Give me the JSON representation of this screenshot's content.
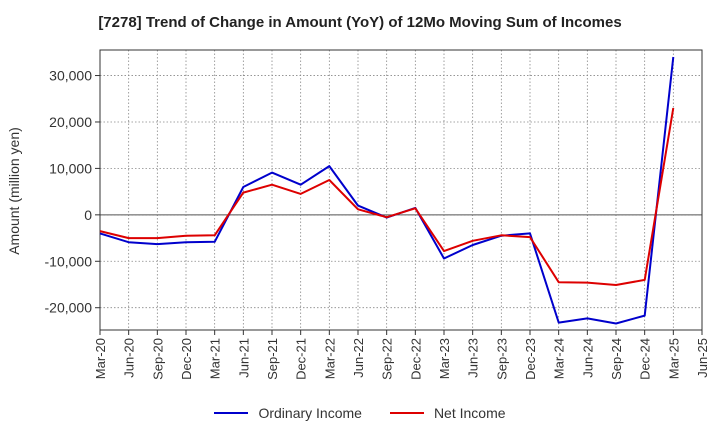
{
  "chart_data": {
    "type": "line",
    "title": "[7278]  Trend of Change in Amount (YoY) of 12Mo Moving Sum of Incomes",
    "xlabel": "",
    "ylabel": "Amount (million yen)",
    "x": [
      "Mar-20",
      "Jun-20",
      "Sep-20",
      "Dec-20",
      "Mar-21",
      "Jun-21",
      "Sep-21",
      "Dec-21",
      "Mar-22",
      "Jun-22",
      "Sep-22",
      "Dec-22",
      "Mar-23",
      "Jun-23",
      "Sep-23",
      "Dec-23",
      "Mar-24",
      "Jun-24",
      "Sep-24",
      "Dec-24",
      "Mar-25",
      "Jun-25"
    ],
    "yticks": [
      -20000,
      -10000,
      0,
      10000,
      20000,
      30000
    ],
    "ytick_labels": [
      "-20,000",
      "-10,000",
      "0",
      "10,000",
      "20,000",
      "30,000"
    ],
    "ylim": [
      -24800,
      35500
    ],
    "grid": true,
    "legend_position": "bottom",
    "series": [
      {
        "name": "Ordinary Income",
        "color": "#0000cc",
        "values": [
          -4000,
          -5900,
          -6300,
          -5900,
          -5800,
          6000,
          9100,
          6500,
          10500,
          2000,
          -600,
          1500,
          -9400,
          -6500,
          -4500,
          -4000,
          -23200,
          -22300,
          -23400,
          -21700,
          34000,
          null
        ]
      },
      {
        "name": "Net Income",
        "color": "#dd0000",
        "values": [
          -3500,
          -5000,
          -5000,
          -4500,
          -4400,
          4800,
          6500,
          4500,
          7500,
          1200,
          -500,
          1400,
          -7800,
          -5600,
          -4400,
          -4800,
          -14500,
          -14600,
          -15100,
          -14000,
          23000,
          null
        ]
      }
    ]
  }
}
